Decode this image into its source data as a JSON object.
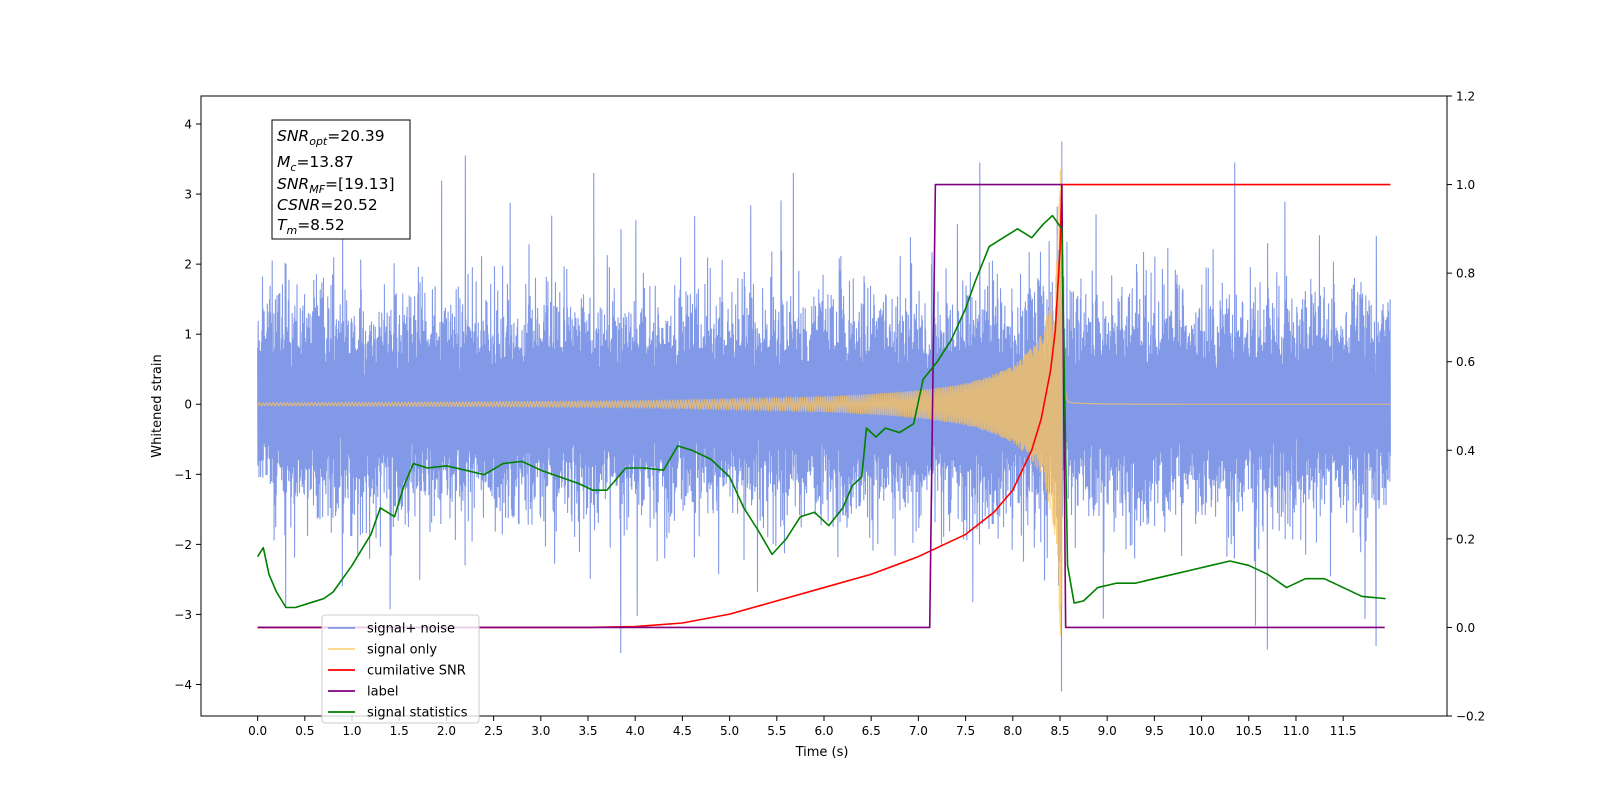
{
  "chart_data": {
    "type": "line",
    "xlabel": "Time (s)",
    "ylabel": "Whitened strain",
    "ylabel_right": "",
    "xlim": [
      -0.6,
      12.6
    ],
    "ylim": [
      -4.45,
      4.4
    ],
    "ylim_right": [
      -0.2,
      1.2
    ],
    "x_ticks": [
      "0.0",
      "0.5",
      "1.0",
      "1.5",
      "2.0",
      "2.5",
      "3.0",
      "3.5",
      "4.0",
      "4.5",
      "5.0",
      "5.5",
      "6.0",
      "6.5",
      "7.0",
      "7.5",
      "8.0",
      "8.5",
      "9.0",
      "9.5",
      "10.0",
      "10.5",
      "11.0",
      "11.5"
    ],
    "y_ticks_left": [
      "−4",
      "−3",
      "−2",
      "−1",
      "0",
      "1",
      "2",
      "3",
      "4"
    ],
    "y_ticks_right": [
      "−0.2",
      "0.0",
      "0.2",
      "0.4",
      "0.6",
      "0.8",
      "1.0",
      "1.2"
    ],
    "grid": false,
    "legend_position": "lower-left",
    "info_box": {
      "snr_opt": "=20.39",
      "mc": "=13.87",
      "snr_mf": "=[19.13]",
      "csnr": "=20.52",
      "tm": "=8.52"
    },
    "series": [
      {
        "name": "signal+ noise",
        "axis": "left",
        "color": "#7b93e6",
        "description_range": [
          0.0,
          12.0
        ],
        "envelope_points": [
          {
            "x": 0.3,
            "ymin": -2.9,
            "ymax": 2.0
          },
          {
            "x": 0.9,
            "ymin": -2.6,
            "ymax": 2.5
          },
          {
            "x": 2.2,
            "ymin": -2.3,
            "ymax": 3.55
          },
          {
            "x": 3.85,
            "ymin": -3.55,
            "ymax": 2.5
          },
          {
            "x": 7.65,
            "ymin": -2.0,
            "ymax": 3.45
          },
          {
            "x": 8.52,
            "ymin": -4.1,
            "ymax": 3.75
          },
          {
            "x": 10.35,
            "ymin": -2.2,
            "ymax": 3.45
          },
          {
            "x": 10.7,
            "ymin": -3.5,
            "ymax": 2.3
          },
          {
            "x": 11.85,
            "ymin": -3.45,
            "ymax": 2.4
          }
        ]
      },
      {
        "name": "signal only",
        "axis": "left",
        "color": "#ffc65a",
        "merger_time": 8.52,
        "peak": 4.0,
        "envelope_points": [
          {
            "x": 0.0,
            "amp": 0.02
          },
          {
            "x": 4.0,
            "amp": 0.05
          },
          {
            "x": 6.0,
            "amp": 0.11
          },
          {
            "x": 7.0,
            "amp": 0.2
          },
          {
            "x": 7.5,
            "amp": 0.3
          },
          {
            "x": 8.0,
            "amp": 0.55
          },
          {
            "x": 8.3,
            "amp": 1.0
          },
          {
            "x": 8.45,
            "amp": 1.9
          },
          {
            "x": 8.52,
            "amp": 4.0
          }
        ]
      },
      {
        "name": "cumilative SNR",
        "axis": "right",
        "color": "#ff0000",
        "points": [
          [
            0.0,
            0.0
          ],
          [
            3.5,
            0.0
          ],
          [
            4.0,
            0.002
          ],
          [
            4.5,
            0.01
          ],
          [
            5.0,
            0.03
          ],
          [
            5.5,
            0.06
          ],
          [
            6.0,
            0.09
          ],
          [
            6.5,
            0.12
          ],
          [
            7.0,
            0.16
          ],
          [
            7.5,
            0.21
          ],
          [
            7.8,
            0.26
          ],
          [
            8.0,
            0.31
          ],
          [
            8.2,
            0.4
          ],
          [
            8.3,
            0.47
          ],
          [
            8.4,
            0.58
          ],
          [
            8.45,
            0.67
          ],
          [
            8.5,
            0.85
          ],
          [
            8.52,
            1.0
          ],
          [
            9.0,
            1.0
          ],
          [
            10.0,
            1.0
          ],
          [
            11.0,
            1.0
          ],
          [
            12.0,
            1.0
          ]
        ]
      },
      {
        "name": "label",
        "axis": "right",
        "color": "#800080",
        "points": [
          [
            0.0,
            0.0
          ],
          [
            7.12,
            0.0
          ],
          [
            7.18,
            1.0
          ],
          [
            8.52,
            1.0
          ],
          [
            8.56,
            0.0
          ],
          [
            11.94,
            0.0
          ]
        ]
      },
      {
        "name": "signal statistics",
        "axis": "right",
        "color": "#008000",
        "points": [
          [
            0.0,
            0.16
          ],
          [
            0.06,
            0.18
          ],
          [
            0.12,
            0.12
          ],
          [
            0.2,
            0.08
          ],
          [
            0.3,
            0.045
          ],
          [
            0.4,
            0.045
          ],
          [
            0.55,
            0.055
          ],
          [
            0.7,
            0.065
          ],
          [
            0.8,
            0.08
          ],
          [
            1.0,
            0.14
          ],
          [
            1.2,
            0.21
          ],
          [
            1.3,
            0.27
          ],
          [
            1.45,
            0.25
          ],
          [
            1.55,
            0.32
          ],
          [
            1.65,
            0.37
          ],
          [
            1.8,
            0.36
          ],
          [
            2.0,
            0.365
          ],
          [
            2.2,
            0.355
          ],
          [
            2.4,
            0.345
          ],
          [
            2.6,
            0.37
          ],
          [
            2.8,
            0.375
          ],
          [
            3.0,
            0.355
          ],
          [
            3.2,
            0.34
          ],
          [
            3.4,
            0.325
          ],
          [
            3.55,
            0.31
          ],
          [
            3.7,
            0.31
          ],
          [
            3.9,
            0.36
          ],
          [
            4.1,
            0.36
          ],
          [
            4.3,
            0.355
          ],
          [
            4.45,
            0.41
          ],
          [
            4.6,
            0.4
          ],
          [
            4.8,
            0.38
          ],
          [
            5.0,
            0.34
          ],
          [
            5.15,
            0.27
          ],
          [
            5.3,
            0.22
          ],
          [
            5.45,
            0.165
          ],
          [
            5.6,
            0.2
          ],
          [
            5.75,
            0.25
          ],
          [
            5.9,
            0.26
          ],
          [
            6.05,
            0.23
          ],
          [
            6.2,
            0.27
          ],
          [
            6.3,
            0.32
          ],
          [
            6.4,
            0.34
          ],
          [
            6.45,
            0.45
          ],
          [
            6.55,
            0.43
          ],
          [
            6.65,
            0.45
          ],
          [
            6.8,
            0.44
          ],
          [
            6.95,
            0.46
          ],
          [
            7.05,
            0.56
          ],
          [
            7.2,
            0.6
          ],
          [
            7.35,
            0.65
          ],
          [
            7.5,
            0.72
          ],
          [
            7.6,
            0.78
          ],
          [
            7.75,
            0.86
          ],
          [
            7.9,
            0.88
          ],
          [
            8.05,
            0.9
          ],
          [
            8.2,
            0.88
          ],
          [
            8.32,
            0.91
          ],
          [
            8.42,
            0.93
          ],
          [
            8.52,
            0.9
          ],
          [
            8.58,
            0.14
          ],
          [
            8.65,
            0.055
          ],
          [
            8.75,
            0.06
          ],
          [
            8.9,
            0.09
          ],
          [
            9.1,
            0.1
          ],
          [
            9.3,
            0.1
          ],
          [
            9.5,
            0.11
          ],
          [
            9.7,
            0.12
          ],
          [
            9.9,
            0.13
          ],
          [
            10.1,
            0.14
          ],
          [
            10.3,
            0.15
          ],
          [
            10.5,
            0.14
          ],
          [
            10.7,
            0.12
          ],
          [
            10.9,
            0.09
          ],
          [
            11.1,
            0.11
          ],
          [
            11.3,
            0.11
          ],
          [
            11.5,
            0.09
          ],
          [
            11.7,
            0.07
          ],
          [
            11.95,
            0.065
          ]
        ]
      }
    ]
  }
}
